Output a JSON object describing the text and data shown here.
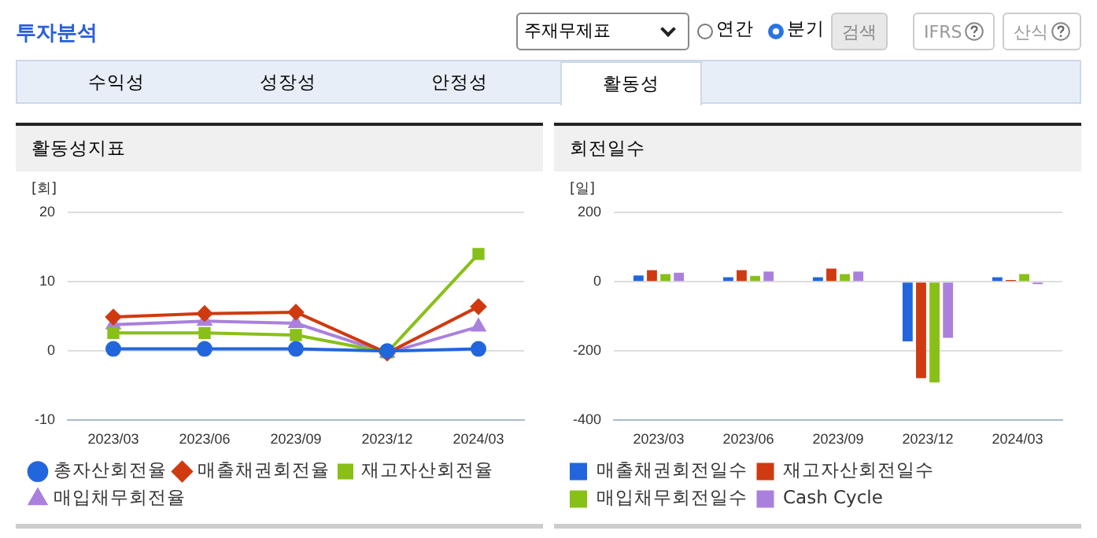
{
  "chart_data": [
    {
      "type": "line",
      "title": "활동성지표",
      "ylabel": "[회]",
      "categories": [
        "2023/03",
        "2023/06",
        "2023/09",
        "2023/12",
        "2024/03"
      ],
      "series": [
        {
          "name": "총자산회전율",
          "color": "#2266dd",
          "marker": "circle",
          "values": [
            0.3,
            0.3,
            0.3,
            0.0,
            0.3
          ]
        },
        {
          "name": "매출채권회전율",
          "color": "#d03a10",
          "marker": "diamond",
          "values": [
            4.9,
            5.4,
            5.6,
            -0.3,
            6.4
          ]
        },
        {
          "name": "재고자산회전율",
          "color": "#88c018",
          "marker": "square",
          "values": [
            2.6,
            2.6,
            2.3,
            -0.2,
            14.0
          ]
        },
        {
          "name": "매입채무회전율",
          "color": "#aa80dd",
          "marker": "triangle",
          "values": [
            3.8,
            4.3,
            4.0,
            -0.3,
            3.5
          ]
        }
      ],
      "ylim": [
        -10,
        20
      ],
      "yticks": [
        -10,
        0,
        10,
        20
      ],
      "grid": "y",
      "legend": "bottom",
      "annotations": [
        "투자분석",
        "주재무제표",
        "연간",
        "분기",
        "검색",
        "IFRS",
        "산식",
        "수익성",
        "성장성",
        "안정성",
        "활동성"
      ]
    },
    {
      "type": "bar",
      "title": "회전일수",
      "ylabel": "[일]",
      "categories": [
        "2023/03",
        "2023/06",
        "2023/09",
        "2023/12",
        "2024/03"
      ],
      "series": [
        {
          "name": "매출채권회전일수",
          "color": "#2266dd",
          "values": [
            18,
            13,
            13,
            -172,
            13
          ]
        },
        {
          "name": "재고자산회전일수",
          "color": "#d03a10",
          "values": [
            33,
            33,
            38,
            -278,
            5
          ]
        },
        {
          "name": "매입채무회전일수",
          "color": "#88c018",
          "values": [
            22,
            17,
            22,
            -291,
            22
          ]
        },
        {
          "name": "Cash Cycle",
          "color": "#aa80dd",
          "values": [
            26,
            29,
            29,
            -162,
            -7
          ]
        }
      ],
      "ylim": [
        -400,
        200
      ],
      "yticks": [
        -400,
        -200,
        0,
        200
      ],
      "grid": "y",
      "legend": "bottom"
    }
  ]
}
